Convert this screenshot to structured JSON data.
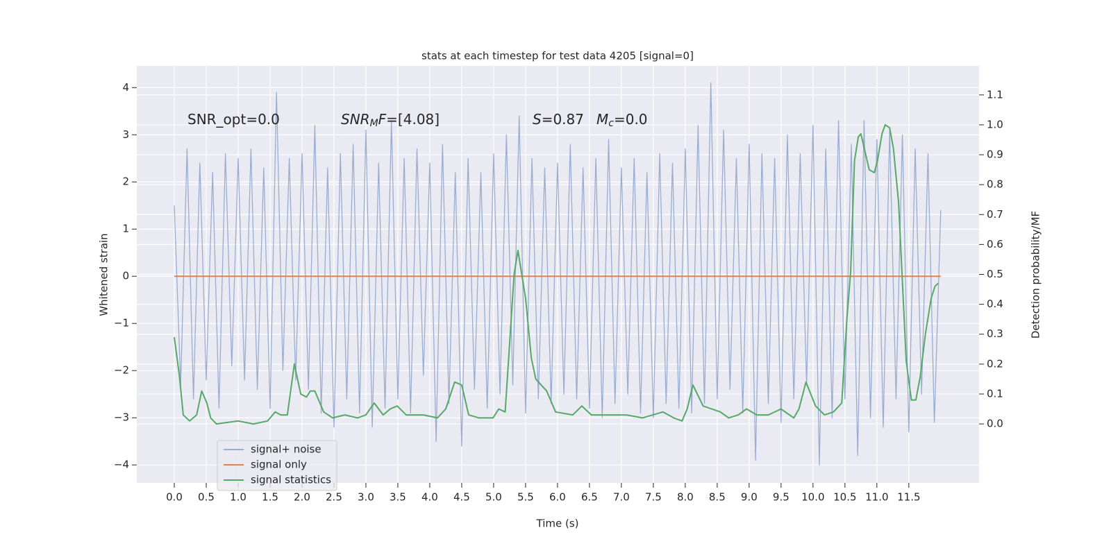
{
  "chart_data": {
    "type": "line",
    "title": "stats at each timestep for test data 4205 [signal=0]",
    "xlabel": "Time (s)",
    "ylabel": "Whitened strain",
    "y2label": "Detection probability/MF",
    "xlim": [
      -0.587,
      12.6
    ],
    "ylim": [
      -4.38,
      4.46
    ],
    "y2lim": [
      -0.197,
      1.197
    ],
    "xticks": [
      {
        "value": 0,
        "label": "0.0"
      },
      0.5,
      {
        "value": 1,
        "label": "1.0"
      },
      1.5,
      {
        "value": 2,
        "label": "2.0"
      },
      2.5,
      {
        "value": 3,
        "label": "3.0"
      },
      3.5,
      {
        "value": 4,
        "label": "4.0"
      },
      4.5,
      {
        "value": 5,
        "label": "5.0"
      },
      5.5,
      {
        "value": 6,
        "label": "6.0"
      },
      6.5,
      {
        "value": 7,
        "label": "7.0"
      },
      7.5,
      {
        "value": 8,
        "label": "8.0"
      },
      8.5,
      {
        "value": 9,
        "label": "9.0"
      },
      9.5,
      {
        "value": 10,
        "label": "10.0"
      },
      10.5,
      {
        "value": 11,
        "label": "11.0"
      },
      11.5
    ],
    "yticks": [
      {
        "value": -4,
        "label": "−4"
      },
      {
        "value": -3,
        "label": "−3"
      },
      {
        "value": -2,
        "label": "−2"
      },
      {
        "value": -1,
        "label": "−1"
      },
      0,
      1,
      2,
      3,
      4
    ],
    "y2ticks": [
      {
        "value": 0,
        "label": "0.0"
      },
      0.1,
      0.2,
      0.3,
      0.4,
      0.5,
      0.6,
      0.7,
      0.8,
      0.9,
      {
        "value": 1,
        "label": "1.0"
      },
      1.1
    ],
    "grid": true,
    "legend": "lower left",
    "annotations": [
      {
        "parts": [
          {
            "text": "SNR_opt=0.0"
          }
        ]
      },
      {
        "parts": [
          {
            "text": "SNR",
            "style": "italic"
          },
          {
            "text": "M",
            "style": "italic-sub"
          },
          {
            "text": "F",
            "style": "italic"
          },
          {
            "text": "=[4.08]"
          }
        ]
      },
      {
        "parts": [
          {
            "text": "S",
            "style": "italic"
          },
          {
            "text": "=0.87"
          }
        ]
      },
      {
        "parts": [
          {
            "text": "M",
            "style": "italic"
          },
          {
            "text": "c",
            "style": "italic-sub"
          },
          {
            "text": "=0.0"
          }
        ]
      }
    ],
    "series": [
      {
        "name": "signal+ noise",
        "color": "#9aadd1",
        "x": [
          0,
          0.1,
          0.2,
          0.3,
          0.4,
          0.5,
          0.6,
          0.7,
          0.8,
          0.9,
          1,
          1.1,
          1.2,
          1.3,
          1.4,
          1.5,
          1.6,
          1.7,
          1.8,
          1.9,
          2,
          2.1,
          2.2,
          2.3,
          2.4,
          2.5,
          2.6,
          2.7,
          2.8,
          2.9,
          3,
          3.1,
          3.2,
          3.3,
          3.4,
          3.5,
          3.6,
          3.7,
          3.8,
          3.9,
          4,
          4.1,
          4.2,
          4.3,
          4.4,
          4.5,
          4.6,
          4.7,
          4.8,
          4.9,
          5,
          5.1,
          5.2,
          5.3,
          5.4,
          5.5,
          5.6,
          5.7,
          5.8,
          5.9,
          6,
          6.1,
          6.2,
          6.3,
          6.4,
          6.5,
          6.6,
          6.7,
          6.8,
          6.9,
          7,
          7.1,
          7.2,
          7.3,
          7.4,
          7.5,
          7.6,
          7.7,
          7.8,
          7.9,
          8,
          8.1,
          8.2,
          8.3,
          8.4,
          8.5,
          8.6,
          8.7,
          8.8,
          8.9,
          9,
          9.1,
          9.2,
          9.3,
          9.4,
          9.5,
          9.6,
          9.7,
          9.8,
          9.9,
          10,
          10.1,
          10.2,
          10.3,
          10.4,
          10.5,
          10.6,
          10.7,
          10.8,
          10.9,
          11,
          11.1,
          11.2,
          11.3,
          11.4,
          11.5,
          11.6,
          11.7,
          11.8,
          11.9,
          12
        ],
        "values": [
          1.5,
          -2.3,
          2.7,
          -2.6,
          2.4,
          -2.2,
          2.2,
          -2.8,
          2.6,
          -1.9,
          2.5,
          -2.2,
          2.7,
          -2.4,
          2.3,
          -2.8,
          3.9,
          -2.0,
          2.5,
          -2.2,
          2.6,
          -2.4,
          3.2,
          -2.9,
          2.3,
          -3.2,
          2.6,
          -2.6,
          2.8,
          -2.9,
          3.1,
          -3.2,
          2.4,
          -2.8,
          3.3,
          -2.6,
          2.5,
          -2.9,
          2.7,
          -2.1,
          2.4,
          -3.5,
          2.8,
          -2.7,
          2.2,
          -3.6,
          2.5,
          -2.4,
          2.2,
          -2.8,
          2.6,
          -2.5,
          3.0,
          -2.3,
          3.4,
          -2.9,
          2.5,
          -2.6,
          2.3,
          -2.7,
          2.4,
          -2.5,
          2.8,
          -2.6,
          2.3,
          -2.8,
          2.5,
          -3.0,
          2.9,
          -2.7,
          2.3,
          -2.5,
          2.5,
          -2.9,
          2.2,
          -3.0,
          2.6,
          -2.7,
          2.4,
          -2.8,
          2.7,
          -2.9,
          3.2,
          -2.7,
          4.1,
          -2.6,
          3.1,
          -2.4,
          2.5,
          -2.9,
          2.8,
          -3.9,
          2.6,
          -2.7,
          2.5,
          -3.1,
          3.0,
          -2.6,
          2.6,
          -2.3,
          3.2,
          -4.0,
          2.7,
          -3.0,
          3.3,
          -2.6,
          2.8,
          -3.8,
          3.3,
          -3.0,
          2.9,
          -3.2,
          3.1,
          -2.6,
          3.0,
          -3.3,
          2.7,
          -2.5,
          2.6,
          -3.1,
          1.4
        ]
      },
      {
        "name": "signal only",
        "color": "#dd8452",
        "x": [
          0,
          12
        ],
        "values": [
          0,
          0
        ]
      },
      {
        "name": "signal statistics",
        "color": "#55a868",
        "axis": "y2",
        "x": [
          0,
          0.08,
          0.14,
          0.24,
          0.35,
          0.43,
          0.51,
          0.57,
          0.66,
          1.0,
          1.24,
          1.46,
          1.58,
          1.67,
          1.77,
          1.88,
          1.98,
          2.07,
          2.13,
          2.2,
          2.34,
          2.48,
          2.67,
          2.87,
          3.0,
          3.13,
          3.27,
          3.38,
          3.49,
          3.63,
          3.9,
          4.12,
          4.25,
          4.39,
          4.5,
          4.61,
          4.77,
          4.99,
          5.08,
          5.18,
          5.32,
          5.38,
          5.5,
          5.59,
          5.66,
          5.83,
          5.97,
          6.24,
          6.38,
          6.53,
          6.84,
          7.08,
          7.33,
          7.65,
          7.82,
          7.95,
          8.03,
          8.12,
          8.28,
          8.55,
          8.68,
          8.83,
          8.96,
          9.12,
          9.3,
          9.5,
          9.7,
          9.78,
          9.89,
          10.04,
          10.18,
          10.32,
          10.45,
          10.53,
          10.59,
          10.65,
          10.71,
          10.75,
          10.88,
          10.96,
          11.01,
          11.08,
          11.13,
          11.2,
          11.26,
          11.34,
          11.46,
          11.54,
          11.61,
          11.68,
          11.76,
          11.85,
          11.91,
          11.96
        ],
        "values": [
          0.29,
          0.16,
          0.03,
          0.01,
          0.03,
          0.11,
          0.07,
          0.02,
          0.0,
          0.01,
          0.0,
          0.01,
          0.04,
          0.03,
          0.03,
          0.2,
          0.1,
          0.09,
          0.11,
          0.11,
          0.04,
          0.02,
          0.03,
          0.02,
          0.03,
          0.07,
          0.03,
          0.05,
          0.06,
          0.03,
          0.03,
          0.02,
          0.05,
          0.14,
          0.13,
          0.03,
          0.02,
          0.02,
          0.05,
          0.04,
          0.5,
          0.58,
          0.42,
          0.22,
          0.15,
          0.11,
          0.04,
          0.03,
          0.06,
          0.03,
          0.03,
          0.03,
          0.02,
          0.04,
          0.02,
          0.01,
          0.05,
          0.13,
          0.06,
          0.04,
          0.02,
          0.03,
          0.05,
          0.03,
          0.03,
          0.05,
          0.02,
          0.05,
          0.14,
          0.06,
          0.03,
          0.04,
          0.07,
          0.35,
          0.51,
          0.88,
          0.96,
          0.97,
          0.85,
          0.84,
          0.88,
          0.97,
          1.0,
          0.99,
          0.92,
          0.74,
          0.21,
          0.08,
          0.08,
          0.16,
          0.3,
          0.42,
          0.46,
          0.47
        ]
      }
    ]
  }
}
